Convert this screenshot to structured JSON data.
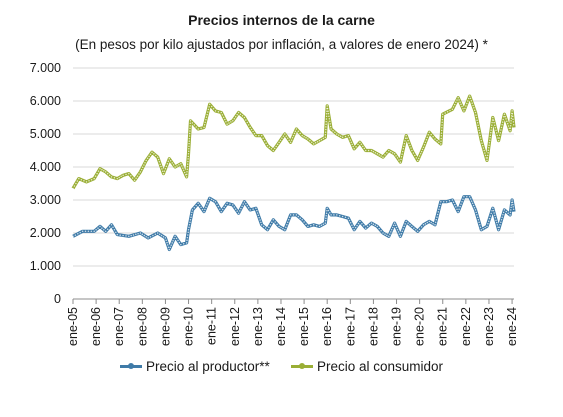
{
  "chart_data": {
    "type": "line",
    "title": "Precios internos de la carne",
    "subtitle": "(En pesos por kilo ajustados por inflación, a valores de enero 2024) *",
    "xlabel": "",
    "ylabel": "",
    "ylim": [
      0,
      7000
    ],
    "yticks": [
      "0",
      "1.000",
      "2.000",
      "3.000",
      "4.000",
      "5.000",
      "6.000",
      "7.000"
    ],
    "xticks": [
      "ene-05",
      "ene-06",
      "ene-07",
      "ene-08",
      "ene-09",
      "ene-10",
      "ene-11",
      "ene-12",
      "ene-13",
      "ene-14",
      "ene-15",
      "ene-16",
      "ene-17",
      "ene-18",
      "ene-19",
      "ene-20",
      "ene-21",
      "ene-22",
      "ene-23",
      "ene-24"
    ],
    "grid": true,
    "legend_position": "bottom",
    "series": [
      {
        "name": "Precio al productor**",
        "color": "#3f7ba8",
        "points": [
          [
            "2005-01",
            1900
          ],
          [
            "2005-06",
            2050
          ],
          [
            "2005-12",
            2050
          ],
          [
            "2006-03",
            2200
          ],
          [
            "2006-06",
            2050
          ],
          [
            "2006-09",
            2250
          ],
          [
            "2006-12",
            1950
          ],
          [
            "2007-06",
            1900
          ],
          [
            "2007-12",
            2000
          ],
          [
            "2008-04",
            1850
          ],
          [
            "2008-09",
            2000
          ],
          [
            "2009-01",
            1850
          ],
          [
            "2009-03",
            1500
          ],
          [
            "2009-06",
            1900
          ],
          [
            "2009-09",
            1650
          ],
          [
            "2009-12",
            1700
          ],
          [
            "2010-01",
            2100
          ],
          [
            "2010-03",
            2700
          ],
          [
            "2010-06",
            2900
          ],
          [
            "2010-09",
            2650
          ],
          [
            "2010-12",
            3050
          ],
          [
            "2011-03",
            2950
          ],
          [
            "2011-06",
            2650
          ],
          [
            "2011-09",
            2900
          ],
          [
            "2011-12",
            2850
          ],
          [
            "2012-03",
            2600
          ],
          [
            "2012-06",
            2950
          ],
          [
            "2012-09",
            2700
          ],
          [
            "2012-12",
            2750
          ],
          [
            "2013-03",
            2250
          ],
          [
            "2013-06",
            2100
          ],
          [
            "2013-09",
            2400
          ],
          [
            "2013-12",
            2200
          ],
          [
            "2014-03",
            2100
          ],
          [
            "2014-06",
            2550
          ],
          [
            "2014-09",
            2550
          ],
          [
            "2014-12",
            2400
          ],
          [
            "2015-03",
            2200
          ],
          [
            "2015-06",
            2250
          ],
          [
            "2015-09",
            2200
          ],
          [
            "2015-12",
            2300
          ],
          [
            "2016-01",
            2750
          ],
          [
            "2016-03",
            2550
          ],
          [
            "2016-06",
            2550
          ],
          [
            "2016-09",
            2500
          ],
          [
            "2016-12",
            2450
          ],
          [
            "2017-03",
            2100
          ],
          [
            "2017-06",
            2350
          ],
          [
            "2017-09",
            2150
          ],
          [
            "2017-12",
            2300
          ],
          [
            "2018-03",
            2200
          ],
          [
            "2018-06",
            2000
          ],
          [
            "2018-09",
            1900
          ],
          [
            "2018-12",
            2300
          ],
          [
            "2019-03",
            1900
          ],
          [
            "2019-06",
            2350
          ],
          [
            "2019-09",
            2200
          ],
          [
            "2019-12",
            2050
          ],
          [
            "2020-03",
            2250
          ],
          [
            "2020-06",
            2350
          ],
          [
            "2020-09",
            2250
          ],
          [
            "2020-12",
            2950
          ],
          [
            "2021-03",
            2950
          ],
          [
            "2021-06",
            3000
          ],
          [
            "2021-09",
            2650
          ],
          [
            "2021-12",
            3100
          ],
          [
            "2022-03",
            3100
          ],
          [
            "2022-06",
            2700
          ],
          [
            "2022-09",
            2100
          ],
          [
            "2022-12",
            2200
          ],
          [
            "2023-03",
            2750
          ],
          [
            "2023-06",
            2100
          ],
          [
            "2023-09",
            2700
          ],
          [
            "2023-12",
            2550
          ],
          [
            "2024-01",
            3000
          ],
          [
            "2024-02",
            2650
          ]
        ]
      },
      {
        "name": "Precio al consumidor",
        "color": "#9aae35",
        "points": [
          [
            "2005-01",
            3350
          ],
          [
            "2005-04",
            3650
          ],
          [
            "2005-08",
            3550
          ],
          [
            "2005-12",
            3650
          ],
          [
            "2006-03",
            3950
          ],
          [
            "2006-06",
            3850
          ],
          [
            "2006-09",
            3700
          ],
          [
            "2006-12",
            3650
          ],
          [
            "2007-03",
            3750
          ],
          [
            "2007-06",
            3800
          ],
          [
            "2007-09",
            3600
          ],
          [
            "2007-12",
            3850
          ],
          [
            "2008-03",
            4200
          ],
          [
            "2008-06",
            4450
          ],
          [
            "2008-09",
            4300
          ],
          [
            "2008-12",
            3800
          ],
          [
            "2009-03",
            4250
          ],
          [
            "2009-06",
            4000
          ],
          [
            "2009-09",
            4100
          ],
          [
            "2009-12",
            3700
          ],
          [
            "2010-01",
            4400
          ],
          [
            "2010-02",
            5400
          ],
          [
            "2010-06",
            5150
          ],
          [
            "2010-09",
            5200
          ],
          [
            "2010-12",
            5900
          ],
          [
            "2011-03",
            5700
          ],
          [
            "2011-06",
            5650
          ],
          [
            "2011-09",
            5300
          ],
          [
            "2011-12",
            5400
          ],
          [
            "2012-03",
            5650
          ],
          [
            "2012-06",
            5500
          ],
          [
            "2012-09",
            5200
          ],
          [
            "2012-12",
            4950
          ],
          [
            "2013-03",
            4950
          ],
          [
            "2013-06",
            4650
          ],
          [
            "2013-09",
            4500
          ],
          [
            "2013-12",
            4750
          ],
          [
            "2014-03",
            5000
          ],
          [
            "2014-06",
            4750
          ],
          [
            "2014-09",
            5150
          ],
          [
            "2014-12",
            4950
          ],
          [
            "2015-03",
            4850
          ],
          [
            "2015-06",
            4700
          ],
          [
            "2015-09",
            4800
          ],
          [
            "2015-12",
            4900
          ],
          [
            "2016-01",
            5850
          ],
          [
            "2016-03",
            5150
          ],
          [
            "2016-06",
            5000
          ],
          [
            "2016-09",
            4900
          ],
          [
            "2016-12",
            4950
          ],
          [
            "2017-03",
            4550
          ],
          [
            "2017-06",
            4750
          ],
          [
            "2017-09",
            4500
          ],
          [
            "2017-12",
            4500
          ],
          [
            "2018-03",
            4400
          ],
          [
            "2018-06",
            4300
          ],
          [
            "2018-09",
            4500
          ],
          [
            "2018-12",
            4400
          ],
          [
            "2019-03",
            4150
          ],
          [
            "2019-06",
            4950
          ],
          [
            "2019-09",
            4500
          ],
          [
            "2019-12",
            4200
          ],
          [
            "2020-03",
            4600
          ],
          [
            "2020-06",
            5050
          ],
          [
            "2020-09",
            4850
          ],
          [
            "2020-12",
            4700
          ],
          [
            "2021-01",
            5600
          ],
          [
            "2021-06",
            5750
          ],
          [
            "2021-09",
            6100
          ],
          [
            "2021-12",
            5700
          ],
          [
            "2022-03",
            6150
          ],
          [
            "2022-06",
            5650
          ],
          [
            "2022-09",
            4800
          ],
          [
            "2022-12",
            4200
          ],
          [
            "2023-03",
            5500
          ],
          [
            "2023-06",
            4800
          ],
          [
            "2023-09",
            5600
          ],
          [
            "2023-12",
            5100
          ],
          [
            "2024-01",
            5700
          ],
          [
            "2024-02",
            5200
          ]
        ]
      }
    ]
  }
}
